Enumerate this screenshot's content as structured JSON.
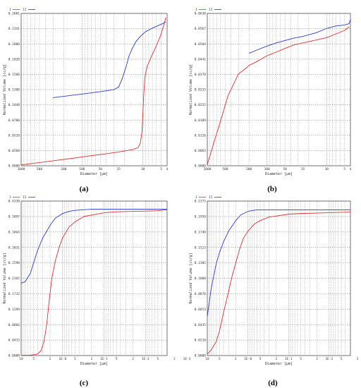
{
  "chart_data": [
    {
      "id": "a",
      "type": "line",
      "caption": "(a)",
      "xlabel": "Diameter [µm]",
      "ylabel": "Normalized Volume [cc/g]",
      "x_scale": "log",
      "x_reversed": true,
      "xlim": [
        1000,
        4
      ],
      "xticks": [
        "1000",
        "500",
        "200",
        "100",
        "50",
        "25",
        "10",
        "5",
        "4"
      ],
      "ylim": [
        0,
        0.2601
      ],
      "yticks": [
        "0.0000",
        "0.0260",
        "0.0520",
        "0.0780",
        "0.1040",
        "0.1300",
        "0.1560",
        "0.1820",
        "0.2080",
        "0.2341",
        "0.2601"
      ],
      "legend": [
        "I",
        "II"
      ],
      "series": [
        {
          "name": "I",
          "color": "#e03030",
          "x": [
            1000,
            600,
            300,
            150,
            80,
            40,
            25,
            15,
            12,
            11,
            10.3,
            10,
            9.7,
            9.3,
            8.5,
            7,
            6,
            5,
            4.2
          ],
          "y": [
            0.0015,
            0.0045,
            0.0085,
            0.0125,
            0.0165,
            0.0205,
            0.0235,
            0.0275,
            0.031,
            0.039,
            0.06,
            0.09,
            0.12,
            0.15,
            0.17,
            0.19,
            0.205,
            0.225,
            0.253
          ]
        },
        {
          "name": "II",
          "color": "#2a3ad0",
          "x": [
            300,
            200,
            100,
            50,
            30,
            25,
            22,
            19,
            17,
            15,
            13,
            11,
            9,
            7,
            5,
            4.2
          ],
          "y": [
            0.1163,
            0.1185,
            0.1225,
            0.1265,
            0.13,
            0.1345,
            0.148,
            0.168,
            0.1865,
            0.2,
            0.212,
            0.221,
            0.229,
            0.235,
            0.2415,
            0.2455
          ]
        }
      ]
    },
    {
      "id": "b",
      "type": "line",
      "caption": "(b)",
      "xlabel": "Diameter [µm]",
      "ylabel": "Normalized Volume [cc/g]",
      "x_scale": "log",
      "x_reversed": true,
      "xlim": [
        1000,
        4
      ],
      "xticks": [
        "1000",
        "500",
        "200",
        "100",
        "50",
        "25",
        "10",
        "5",
        "4"
      ],
      "ylim": [
        0,
        0.063
      ],
      "yticks": [
        "0.0000",
        "0.0063",
        "0.0126",
        "0.0189",
        "0.0252",
        "0.0315",
        "0.0378",
        "0.0441",
        "0.0504",
        "0.0567",
        "0.0630"
      ],
      "legend": [
        "I",
        "II"
      ],
      "series": [
        {
          "name": "I",
          "color": "#e03030",
          "x": [
            1000,
            800,
            600,
            450,
            300,
            220,
            200,
            150,
            100,
            70,
            50,
            35,
            25,
            15,
            10,
            7,
            5,
            4.2
          ],
          "y": [
            0.0005,
            0.0085,
            0.0185,
            0.029,
            0.038,
            0.0405,
            0.0415,
            0.043,
            0.0455,
            0.047,
            0.0485,
            0.05,
            0.0508,
            0.052,
            0.053,
            0.0545,
            0.056,
            0.0575
          ]
        },
        {
          "name": "II",
          "color": "#2a3ad0",
          "x": [
            200,
            150,
            100,
            70,
            50,
            35,
            25,
            15,
            10,
            7,
            5,
            4.2,
            4
          ],
          "y": [
            0.0465,
            0.0478,
            0.0495,
            0.0508,
            0.0518,
            0.0528,
            0.0535,
            0.055,
            0.0568,
            0.0578,
            0.0582,
            0.0588,
            0.0605
          ]
        }
      ]
    },
    {
      "id": "c",
      "type": "line",
      "caption": "(c)",
      "xlabel": "Diameter [µm]",
      "ylabel": "Normalized Volume [cc/g]",
      "x_scale": "log",
      "x_reversed": true,
      "xlim": [
        10,
        0.003
      ],
      "xticks": [
        "10",
        "5",
        "2",
        "1E-0",
        "5",
        "2",
        "1E-1",
        "5",
        "2",
        "1E-2",
        "5",
        "2",
        "1E-3"
      ],
      "ylim": [
        0,
        0.433
      ],
      "yticks": [
        "0.0000",
        "0.0433",
        "0.0866",
        "0.1299",
        "0.1732",
        "0.2165",
        "0.2598",
        "0.3031",
        "0.3464",
        "0.3897",
        "0.4330"
      ],
      "legend": [
        "I",
        "II"
      ],
      "series": [
        {
          "name": "I",
          "color": "#e03030",
          "x": [
            10,
            6,
            4,
            3.3,
            2.8,
            2.4,
            2.1,
            1.8,
            1.5,
            1.2,
            1,
            0.7,
            0.5,
            0.3,
            0.1,
            0.05,
            0.01,
            0.005,
            0.003
          ],
          "y": [
            0.0005,
            0.001,
            0.004,
            0.014,
            0.04,
            0.09,
            0.155,
            0.22,
            0.265,
            0.305,
            0.33,
            0.36,
            0.375,
            0.39,
            0.4,
            0.403,
            0.405,
            0.406,
            0.409
          ]
        },
        {
          "name": "II",
          "color": "#2a3ad0",
          "x": [
            10,
            8,
            6,
            5,
            4,
            3,
            2,
            1.5,
            1,
            0.7,
            0.5,
            0.3,
            0.2,
            0.1,
            0.01,
            0.003
          ],
          "y": [
            0.203,
            0.207,
            0.23,
            0.26,
            0.295,
            0.33,
            0.365,
            0.385,
            0.398,
            0.404,
            0.407,
            0.409,
            0.41,
            0.41,
            0.41,
            0.41
          ]
        }
      ]
    },
    {
      "id": "d",
      "type": "line",
      "caption": "(d)",
      "xlabel": "Diameter [µm]",
      "ylabel": "Normalized Volume [cc/g]",
      "x_scale": "log",
      "x_reversed": true,
      "xlim": [
        10,
        0.003
      ],
      "xticks": [
        "10",
        "5",
        "2",
        "1E-0",
        "5",
        "2",
        "1E-1",
        "5",
        "2",
        "1E-2",
        "5",
        "2",
        "1E-3"
      ],
      "ylim": [
        0,
        0.2175
      ],
      "yticks": [
        "0.0000",
        "0.0218",
        "0.0435",
        "0.0653",
        "0.0870",
        "0.1088",
        "0.1305",
        "0.1523",
        "0.1740",
        "0.1958",
        "0.2175"
      ],
      "legend": [
        "I",
        "II"
      ],
      "series": [
        {
          "name": "I",
          "color": "#e03030",
          "x": [
            10,
            8,
            6,
            5,
            4,
            3,
            2.5,
            2,
            1.6,
            1.3,
            1,
            0.7,
            0.5,
            0.3,
            0.1,
            0.05,
            0.01,
            0.003
          ],
          "y": [
            0.002,
            0.008,
            0.02,
            0.035,
            0.06,
            0.09,
            0.11,
            0.13,
            0.15,
            0.165,
            0.175,
            0.185,
            0.19,
            0.195,
            0.199,
            0.2,
            0.201,
            0.202
          ]
        },
        {
          "name": "II",
          "color": "#2a3ad0",
          "x": [
            10,
            8,
            6,
            5,
            4,
            3,
            2,
            1.5,
            1,
            0.8,
            0.6,
            0.5,
            0.3,
            0.1,
            0.01,
            0.003
          ],
          "y": [
            0.055,
            0.095,
            0.13,
            0.145,
            0.16,
            0.175,
            0.19,
            0.198,
            0.203,
            0.204,
            0.205,
            0.205,
            0.205,
            0.205,
            0.205,
            0.205
          ]
        }
      ]
    }
  ]
}
